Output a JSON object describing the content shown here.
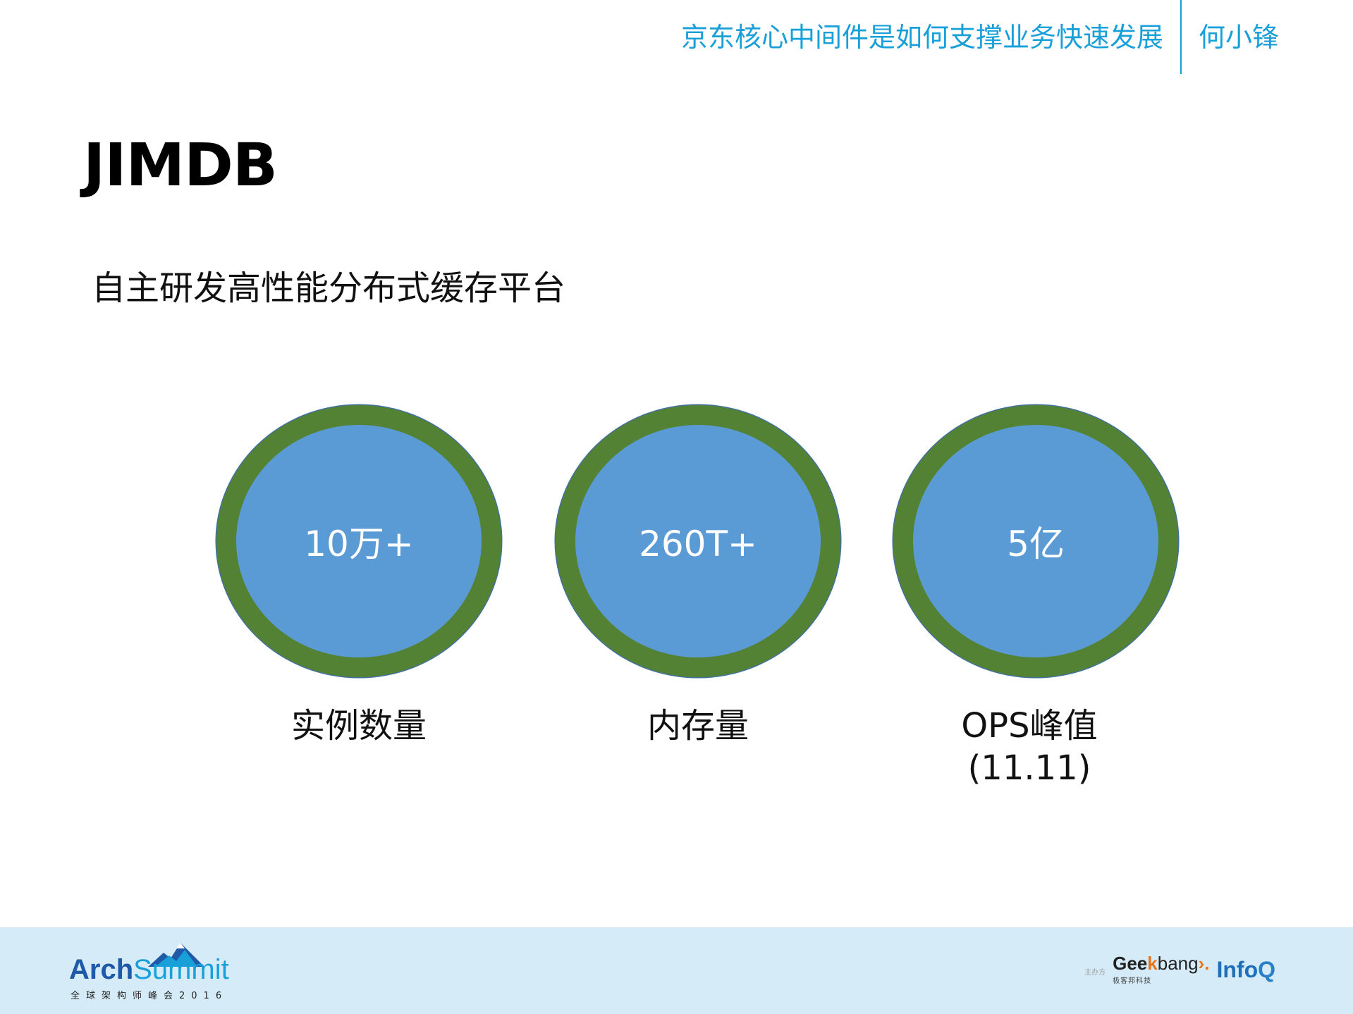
{
  "header": {
    "topic": "京东核心中间件是如何支撑业务快速发展",
    "speaker": "何小锋"
  },
  "title": "JIMDB",
  "subtitle": "自主研发高性能分布式缓存平台",
  "metrics": [
    {
      "value": "10万+",
      "label": "实例数量"
    },
    {
      "value": "260T+",
      "label": "内存量"
    },
    {
      "value": "5亿",
      "label": "OPS峰值",
      "label2": "(11.11)"
    }
  ],
  "colors": {
    "accent": "#1aa0d8",
    "circle_fill": "#5b9bd5",
    "circle_ring": "#548235",
    "footer_bg": "#d5ecf8"
  },
  "footer": {
    "arch_logo": {
      "part1": "Arch",
      "part2": "Summit",
      "sub": "全球架构师峰会2016"
    },
    "host_label": "主办方",
    "geekbang": {
      "part1": "Gee",
      "part2": "k",
      "part3": "bang",
      "arrow": "›.",
      "sub": "极客邦科技"
    },
    "infoq": {
      "part1": "Info",
      "part2": "Q"
    }
  }
}
